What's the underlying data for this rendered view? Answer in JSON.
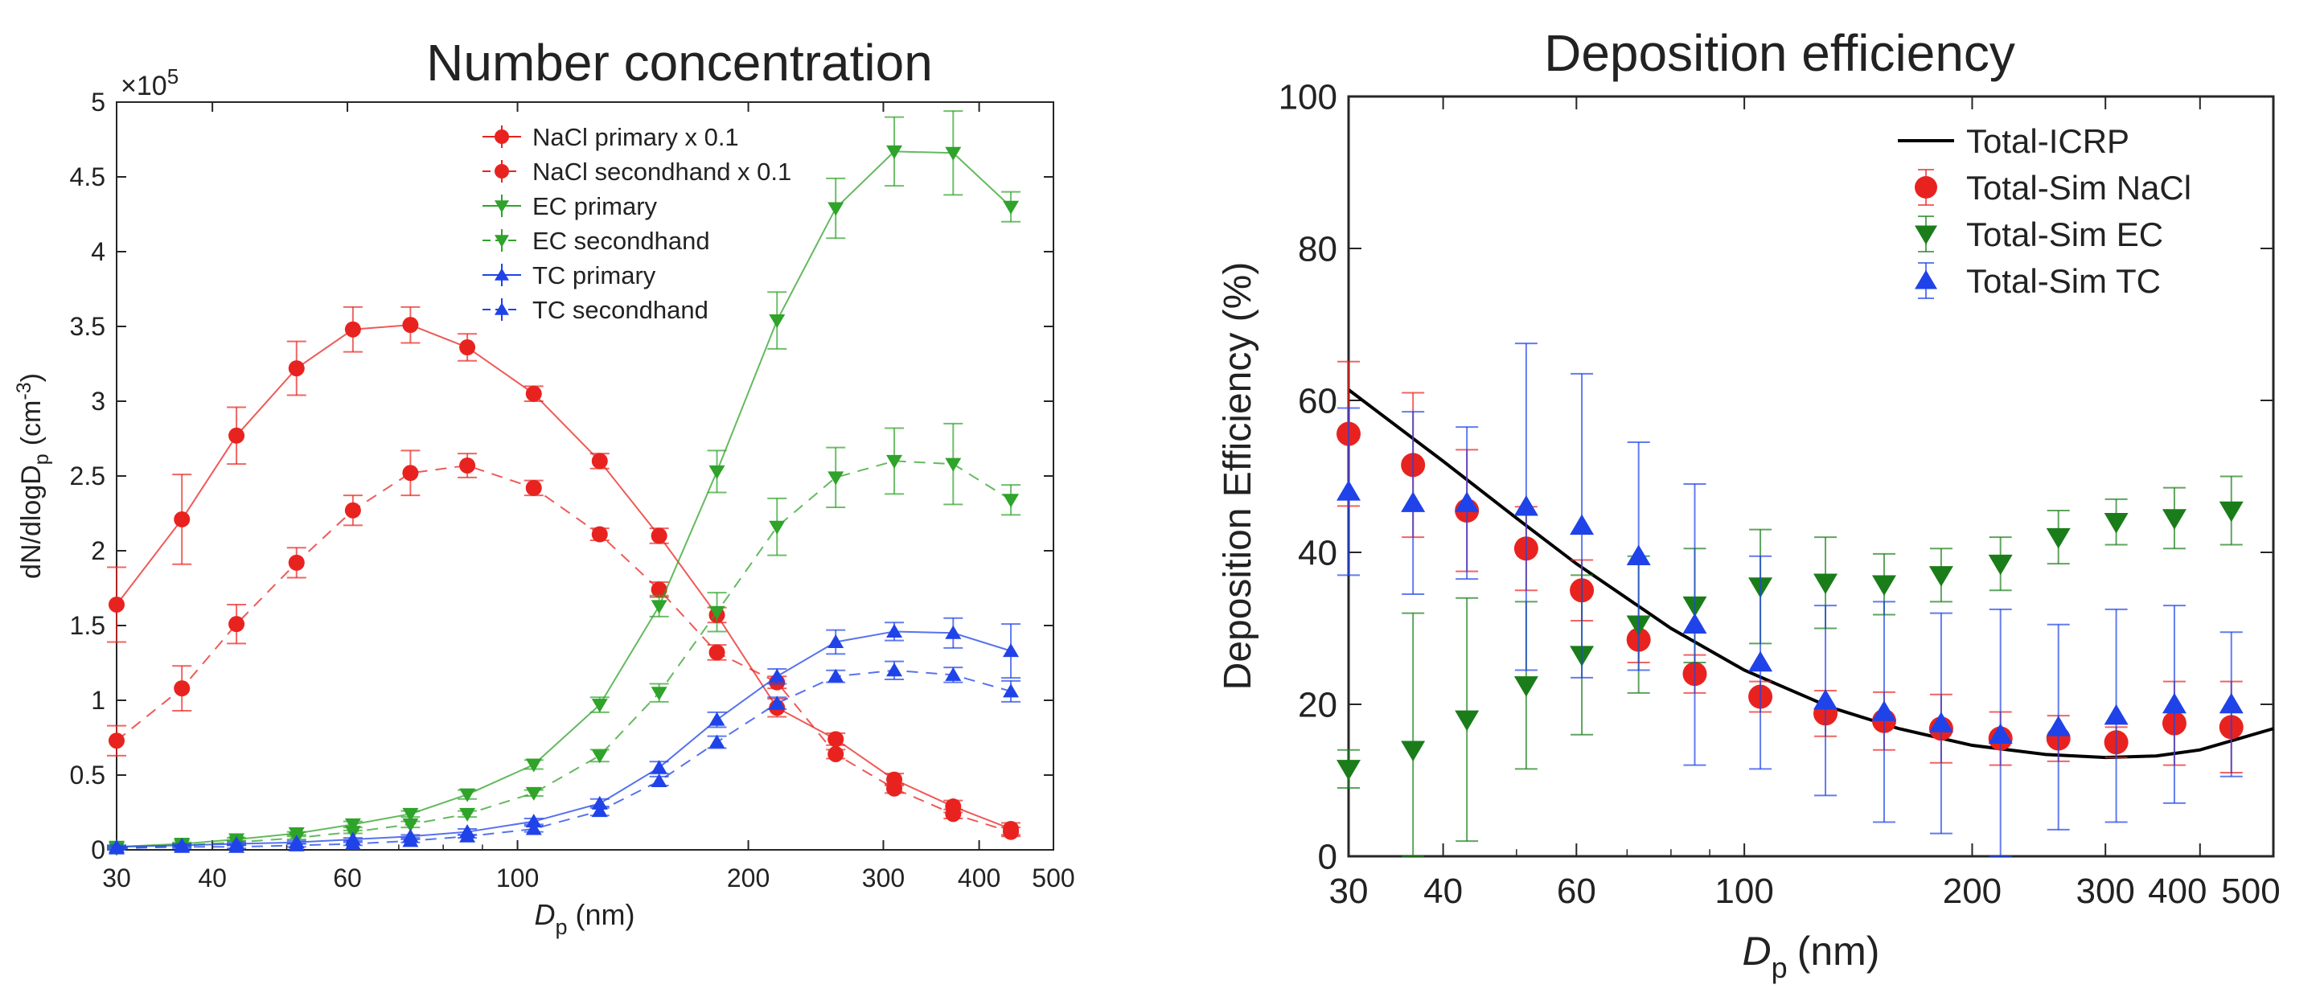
{
  "chart_data": [
    {
      "type": "line",
      "title": "Number concentration",
      "xlabel": "D",
      "xlabel_sub": "p",
      "xlabel_unit": "(nm)",
      "ylabel_prefix": "dN/dlogD",
      "ylabel_sub": "p",
      "ylabel_unit": "(cm",
      "ylabel_exp": "-3",
      "ylabel_close": ")",
      "y_exponent_label": "×10",
      "y_exponent_power": "5",
      "x_scale": "log",
      "xlim": [
        30,
        500
      ],
      "ylim": [
        0,
        5
      ],
      "x_ticks": [
        30,
        40,
        60,
        100,
        200,
        300,
        400,
        500
      ],
      "x_tick_labels": [
        "30",
        "40",
        "60",
        "100",
        "200",
        "300",
        "400",
        "500"
      ],
      "y_ticks": [
        0,
        0.5,
        1,
        1.5,
        2,
        2.5,
        3,
        3.5,
        4,
        4.5,
        5
      ],
      "y_tick_labels": [
        "0",
        "0.5",
        "1",
        "1.5",
        "2",
        "2.5",
        "3",
        "3.5",
        "4",
        "4.5",
        "5"
      ],
      "legend_position": "top-right",
      "x": [
        30,
        36.5,
        43,
        51.5,
        61,
        72.5,
        86,
        105,
        128,
        153,
        182,
        218,
        260,
        310,
        370,
        440
      ],
      "series": [
        {
          "name": "NaCl primary x 0.1",
          "color": "#e8231f",
          "dash": false,
          "marker": "circle",
          "values": [
            1.64,
            2.21,
            2.77,
            3.22,
            3.48,
            3.51,
            3.36,
            3.05,
            2.6,
            2.1,
            1.57,
            0.95,
            0.74,
            0.47,
            0.29,
            0.14
          ],
          "errors": [
            0.25,
            0.3,
            0.19,
            0.18,
            0.15,
            0.12,
            0.09,
            0.05,
            0.05,
            0.05,
            0.05,
            0.06,
            0.04,
            0.04,
            0.04,
            0.04
          ]
        },
        {
          "name": "NaCl secondhand x 0.1",
          "color": "#e8231f",
          "dash": true,
          "marker": "circle",
          "values": [
            0.73,
            1.08,
            1.51,
            1.92,
            2.27,
            2.52,
            2.57,
            2.42,
            2.11,
            1.74,
            1.32,
            1.12,
            0.64,
            0.41,
            0.24,
            0.12
          ],
          "errors": [
            0.1,
            0.15,
            0.13,
            0.1,
            0.1,
            0.15,
            0.08,
            0.05,
            0.04,
            0.05,
            0.05,
            0.04,
            0.03,
            0.03,
            0.03,
            0.03
          ]
        },
        {
          "name": "EC primary",
          "color": "#2fa32a",
          "dash": false,
          "marker": "triangle-down",
          "values": [
            0.02,
            0.04,
            0.07,
            0.11,
            0.17,
            0.24,
            0.37,
            0.57,
            0.97,
            1.63,
            2.53,
            3.54,
            4.29,
            4.67,
            4.66,
            4.3
          ],
          "errors": [
            0.01,
            0.01,
            0.01,
            0.01,
            0.02,
            0.02,
            0.03,
            0.03,
            0.05,
            0.07,
            0.14,
            0.19,
            0.2,
            0.23,
            0.28,
            0.1
          ]
        },
        {
          "name": "EC secondhand",
          "color": "#2fa32a",
          "dash": true,
          "marker": "triangle-down",
          "values": [
            0.01,
            0.03,
            0.05,
            0.08,
            0.12,
            0.17,
            0.24,
            0.38,
            0.63,
            1.05,
            1.59,
            2.16,
            2.49,
            2.6,
            2.58,
            2.34
          ],
          "errors": [
            0.01,
            0.01,
            0.01,
            0.01,
            0.01,
            0.02,
            0.02,
            0.02,
            0.04,
            0.06,
            0.13,
            0.19,
            0.2,
            0.22,
            0.27,
            0.1
          ]
        },
        {
          "name": "TC primary",
          "color": "#1f43e8",
          "dash": false,
          "marker": "triangle-up",
          "values": [
            0.02,
            0.03,
            0.04,
            0.05,
            0.07,
            0.09,
            0.12,
            0.19,
            0.31,
            0.55,
            0.87,
            1.16,
            1.39,
            1.46,
            1.45,
            1.33
          ],
          "errors": [
            0.01,
            0.01,
            0.01,
            0.01,
            0.01,
            0.01,
            0.02,
            0.02,
            0.03,
            0.04,
            0.05,
            0.05,
            0.08,
            0.06,
            0.1,
            0.18
          ]
        },
        {
          "name": "TC secondhand",
          "color": "#1f43e8",
          "dash": true,
          "marker": "triangle-up",
          "values": [
            0.01,
            0.02,
            0.02,
            0.03,
            0.04,
            0.06,
            0.09,
            0.14,
            0.26,
            0.46,
            0.72,
            0.98,
            1.16,
            1.2,
            1.17,
            1.06
          ],
          "errors": [
            0.01,
            0.01,
            0.01,
            0.01,
            0.01,
            0.01,
            0.01,
            0.02,
            0.03,
            0.03,
            0.04,
            0.04,
            0.04,
            0.06,
            0.05,
            0.07
          ]
        }
      ]
    },
    {
      "type": "scatter",
      "title": "Deposition efficiency",
      "xlabel": "D",
      "xlabel_sub": "p",
      "xlabel_unit": "(nm)",
      "ylabel": "Deposition Efficiency (%)",
      "x_scale": "log",
      "xlim": [
        30,
        500
      ],
      "ylim": [
        0,
        100
      ],
      "x_ticks": [
        30,
        40,
        60,
        100,
        200,
        300,
        400,
        500
      ],
      "x_tick_labels": [
        "30",
        "40",
        "60",
        "100",
        "200",
        "300",
        "400",
        "500"
      ],
      "y_ticks": [
        0,
        20,
        40,
        60,
        80,
        100
      ],
      "y_tick_labels": [
        "0",
        "20",
        "40",
        "60",
        "80",
        "100"
      ],
      "legend_position": "top-right",
      "line": {
        "name": "Total-ICRP",
        "color": "#000000",
        "x": [
          30,
          40,
          50,
          60,
          80,
          100,
          130,
          160,
          200,
          250,
          300,
          350,
          400,
          500
        ],
        "y": [
          61.4,
          52.0,
          44.5,
          38.5,
          30.0,
          24.5,
          19.6,
          16.8,
          14.6,
          13.4,
          13.0,
          13.2,
          14.0,
          16.8
        ]
      },
      "x": [
        30,
        36.5,
        43,
        51.5,
        61,
        72.5,
        86,
        105,
        128,
        153,
        182,
        218,
        260,
        310,
        370,
        440
      ],
      "series": [
        {
          "name": "Total-Sim NaCl",
          "color": "#e8231f",
          "marker": "circle",
          "values": [
            55.6,
            51.5,
            45.5,
            40.5,
            35.0,
            28.5,
            24.0,
            21.0,
            18.8,
            17.8,
            16.8,
            15.5,
            15.5,
            15.0,
            17.5,
            17.0
          ],
          "errors": [
            9.5,
            9.5,
            8.0,
            5.5,
            4.0,
            3.0,
            2.5,
            2.0,
            3.0,
            3.8,
            4.5,
            3.5,
            3.0,
            2.0,
            5.5,
            6.0
          ]
        },
        {
          "name": "Total-Sim EC",
          "color": "#1a7d1a",
          "marker": "triangle-down",
          "values": [
            11.5,
            14.0,
            18.0,
            22.5,
            26.5,
            30.5,
            33.0,
            35.5,
            36.0,
            35.8,
            37.0,
            38.5,
            42.0,
            44.0,
            44.5,
            45.5
          ],
          "errors": [
            2.5,
            18.0,
            16.0,
            11.0,
            10.5,
            9.0,
            7.5,
            7.5,
            6.0,
            4.0,
            3.5,
            3.5,
            3.5,
            3.0,
            4.0,
            4.5
          ]
        },
        {
          "name": "Total-Sim TC",
          "color": "#1f43e8",
          "marker": "triangle-up",
          "values": [
            48.0,
            46.5,
            46.5,
            46.0,
            43.5,
            39.5,
            30.5,
            25.5,
            20.5,
            19.0,
            17.5,
            16.0,
            17.0,
            18.5,
            20.0,
            20.0
          ],
          "errors": [
            11.0,
            12.0,
            10.0,
            21.5,
            20.0,
            15.0,
            18.5,
            14.0,
            12.5,
            14.5,
            14.5,
            16.5,
            13.5,
            14.0,
            13.0,
            9.5
          ]
        }
      ]
    }
  ]
}
